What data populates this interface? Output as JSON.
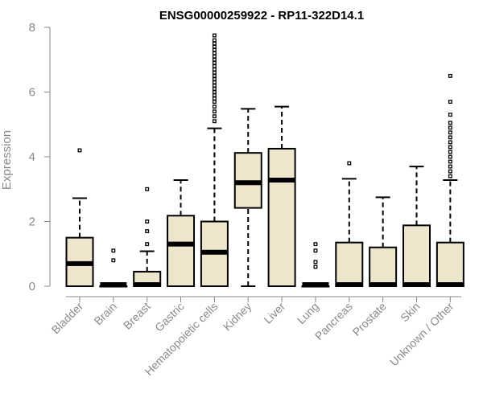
{
  "chart_data": {
    "type": "box",
    "title": "ENSG00000259922 - RP11-322D14.1",
    "ylabel": "Expression",
    "xlabel": "",
    "ylim": [
      0,
      8
    ],
    "yticks": [
      0,
      2,
      4,
      6,
      8
    ],
    "grid": false,
    "box_color": "#ede6cd",
    "categories": [
      "Bladder",
      "Brain",
      "Breast",
      "Gastric",
      "Hematopoietic cells",
      "Kidney",
      "Liver",
      "Lung",
      "Pancreas",
      "Prostate",
      "Skin",
      "Unknown / Other"
    ],
    "boxes": [
      {
        "category": "Bladder",
        "q1": 0.0,
        "median": 0.7,
        "q3": 1.5,
        "whisker_low": 0.0,
        "whisker_high": 2.72,
        "outliers": [
          4.2
        ]
      },
      {
        "category": "Brain",
        "q1": 0.0,
        "median": 0.0,
        "q3": 0.0,
        "whisker_low": 0.0,
        "whisker_high": 0.0,
        "outliers": [
          0.8,
          1.1
        ]
      },
      {
        "category": "Breast",
        "q1": 0.0,
        "median": 0.02,
        "q3": 0.45,
        "whisker_low": 0.0,
        "whisker_high": 1.08,
        "outliers": [
          1.3,
          1.7,
          2.0,
          3.0
        ]
      },
      {
        "category": "Gastric",
        "q1": 0.0,
        "median": 1.3,
        "q3": 2.18,
        "whisker_low": 0.0,
        "whisker_high": 3.28,
        "outliers": []
      },
      {
        "category": "Hematopoietic cells",
        "q1": 0.0,
        "median": 1.05,
        "q3": 2.0,
        "whisker_low": 0.0,
        "whisker_high": 4.88,
        "outliers": [
          5.1,
          5.25,
          5.4,
          5.55,
          5.7,
          5.8,
          5.9,
          6.0,
          6.1,
          6.2,
          6.3,
          6.4,
          6.5,
          6.6,
          6.7,
          6.8,
          6.9,
          7.0,
          7.1,
          7.2,
          7.3,
          7.4,
          7.5,
          7.6,
          7.75
        ]
      },
      {
        "category": "Kidney",
        "q1": 2.42,
        "median": 3.2,
        "q3": 4.12,
        "whisker_low": 0.0,
        "whisker_high": 5.48,
        "outliers": []
      },
      {
        "category": "Liver",
        "q1": 0.0,
        "median": 3.28,
        "q3": 4.25,
        "whisker_low": 0.0,
        "whisker_high": 5.55,
        "outliers": []
      },
      {
        "category": "Lung",
        "q1": 0.0,
        "median": 0.0,
        "q3": 0.0,
        "whisker_low": 0.0,
        "whisker_high": 0.0,
        "outliers": [
          0.6,
          0.75,
          1.1,
          1.3
        ]
      },
      {
        "category": "Pancreas",
        "q1": 0.0,
        "median": 0.0,
        "q3": 1.35,
        "whisker_low": 0.0,
        "whisker_high": 3.32,
        "outliers": [
          3.8
        ]
      },
      {
        "category": "Prostate",
        "q1": 0.0,
        "median": 0.0,
        "q3": 1.2,
        "whisker_low": 0.0,
        "whisker_high": 2.75,
        "outliers": []
      },
      {
        "category": "Skin",
        "q1": 0.0,
        "median": 0.0,
        "q3": 1.88,
        "whisker_low": 0.0,
        "whisker_high": 3.7,
        "outliers": []
      },
      {
        "category": "Unknown / Other",
        "q1": 0.0,
        "median": 0.0,
        "q3": 1.35,
        "whisker_low": 0.0,
        "whisker_high": 3.28,
        "outliers": [
          3.4,
          3.55,
          3.7,
          3.85,
          4.0,
          4.15,
          4.3,
          4.45,
          4.6,
          4.75,
          4.9,
          5.05,
          5.3,
          5.7,
          6.5
        ]
      }
    ]
  }
}
